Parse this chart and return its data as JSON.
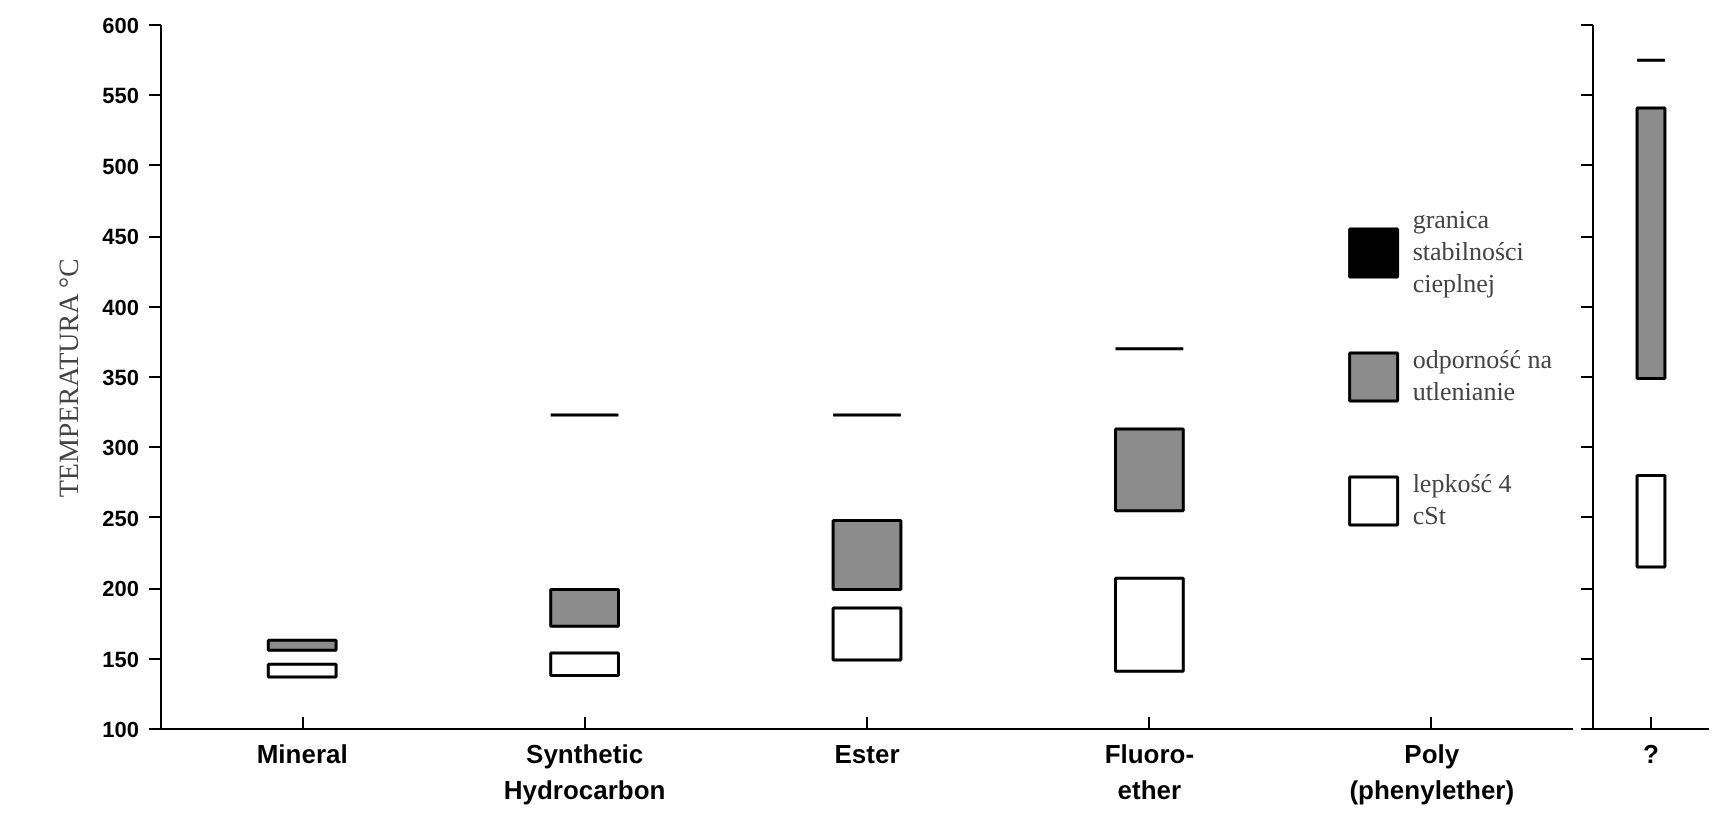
{
  "chart_data": [
    {
      "type": "bar",
      "ylabel": "TEMPERATURA °C",
      "categories": [
        "Mineral",
        "Synthetic\nHydrocarbon",
        "Ester",
        "Fluoro-\nether",
        "Poly\n(phenylether)"
      ],
      "ylim": [
        100,
        600
      ],
      "yticks": [
        100,
        150,
        200,
        250,
        300,
        350,
        400,
        450,
        500,
        550,
        600
      ],
      "grid": false,
      "legend": "right",
      "series": [
        {
          "name": "granica stabilności cieplnej",
          "color": "#000000",
          "base": [
            null,
            323,
            323,
            370,
            null
          ],
          "values": [
            null,
            0,
            0,
            0,
            null
          ]
        },
        {
          "name": "odporność na utlenianie",
          "color": "#8c8c8c",
          "base": [
            156,
            173,
            199,
            255,
            null
          ],
          "values": [
            7,
            26,
            49,
            58,
            null
          ]
        },
        {
          "name": "lepkość 4 cSt",
          "color": "#ffffff",
          "base": [
            137,
            138,
            149,
            141,
            null
          ],
          "values": [
            9,
            16,
            37,
            66,
            null
          ]
        }
      ]
    },
    {
      "type": "bar",
      "categories": [
        "?"
      ],
      "ylim": [
        100,
        600
      ],
      "yticks": [
        100,
        150,
        200,
        250,
        300,
        350,
        400,
        450,
        500,
        550,
        600
      ],
      "tick_labels": "x",
      "grid": false,
      "series": [
        {
          "color": "#000000",
          "base": [
            575
          ],
          "values": [
            0
          ]
        },
        {
          "color": "#8c8c8c",
          "base": [
            349
          ],
          "values": [
            192
          ]
        },
        {
          "color": "#ffffff",
          "base": [
            215
          ],
          "values": [
            65
          ]
        }
      ]
    }
  ]
}
